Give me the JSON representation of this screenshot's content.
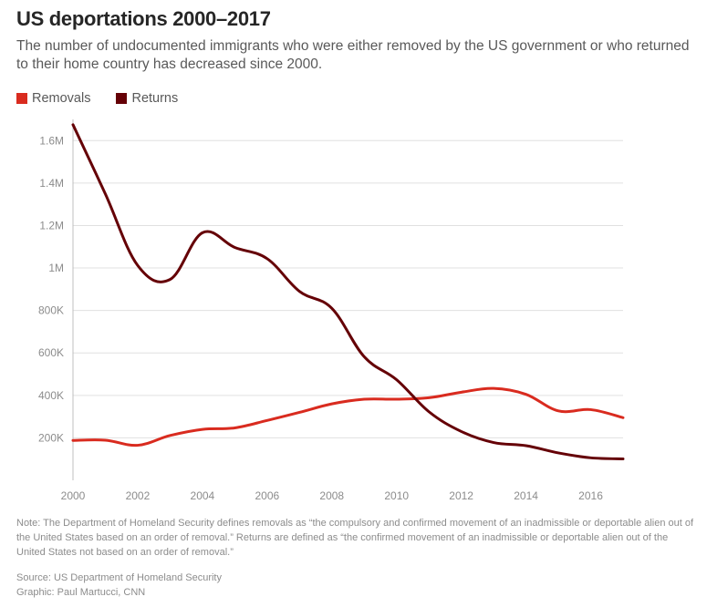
{
  "title": "US deportations 2000–2017",
  "subtitle": "The number of undocumented immigrants who were either removed by the US government or who returned to their home country has decreased since 2000.",
  "note": "Note: The Department of Homeland Security defines removals as “the compulsory and confirmed movement of an inadmissible or deportable alien out of the United States based on an order of removal.” Returns are defined as “the confirmed movement of an inadmissible or deportable alien out of the United States not based on an order of removal.”",
  "source": "Source: US Department of Homeland Security",
  "graphic_credit": "Graphic: Paul Martucci, CNN",
  "chart_data": {
    "type": "line",
    "title": "US deportations 2000–2017",
    "xlabel": "",
    "ylabel": "",
    "x": [
      2000,
      2001,
      2002,
      2003,
      2004,
      2005,
      2006,
      2007,
      2008,
      2009,
      2010,
      2011,
      2012,
      2013,
      2014,
      2015,
      2016,
      2017
    ],
    "xlim": [
      2000,
      2017
    ],
    "ylim": [
      0,
      1700000
    ],
    "x_ticks": [
      2000,
      2002,
      2004,
      2006,
      2008,
      2010,
      2012,
      2014,
      2016
    ],
    "x_tick_labels": [
      "2000",
      "2002",
      "2004",
      "2006",
      "2008",
      "2010",
      "2012",
      "2014",
      "2016"
    ],
    "y_ticks": [
      200000,
      400000,
      600000,
      800000,
      1000000,
      1200000,
      1400000,
      1600000
    ],
    "y_tick_labels": [
      "200K",
      "400K",
      "600K",
      "800K",
      "1M",
      "1.2M",
      "1.4M",
      "1.6M"
    ],
    "grid": true,
    "legend_position": "top-left",
    "series": [
      {
        "name": "Removals",
        "color": "#d92b1f",
        "values": [
          188000,
          189000,
          165000,
          211000,
          240000,
          247000,
          282000,
          320000,
          360000,
          382000,
          382000,
          389000,
          415000,
          433000,
          405000,
          327000,
          333000,
          295000
        ]
      },
      {
        "name": "Returns",
        "color": "#650006",
        "values": [
          1675000,
          1349000,
          1012000,
          946000,
          1166000,
          1097000,
          1044000,
          890000,
          810000,
          582000,
          474000,
          323000,
          230000,
          178000,
          163000,
          129000,
          106000,
          101000
        ]
      }
    ]
  }
}
